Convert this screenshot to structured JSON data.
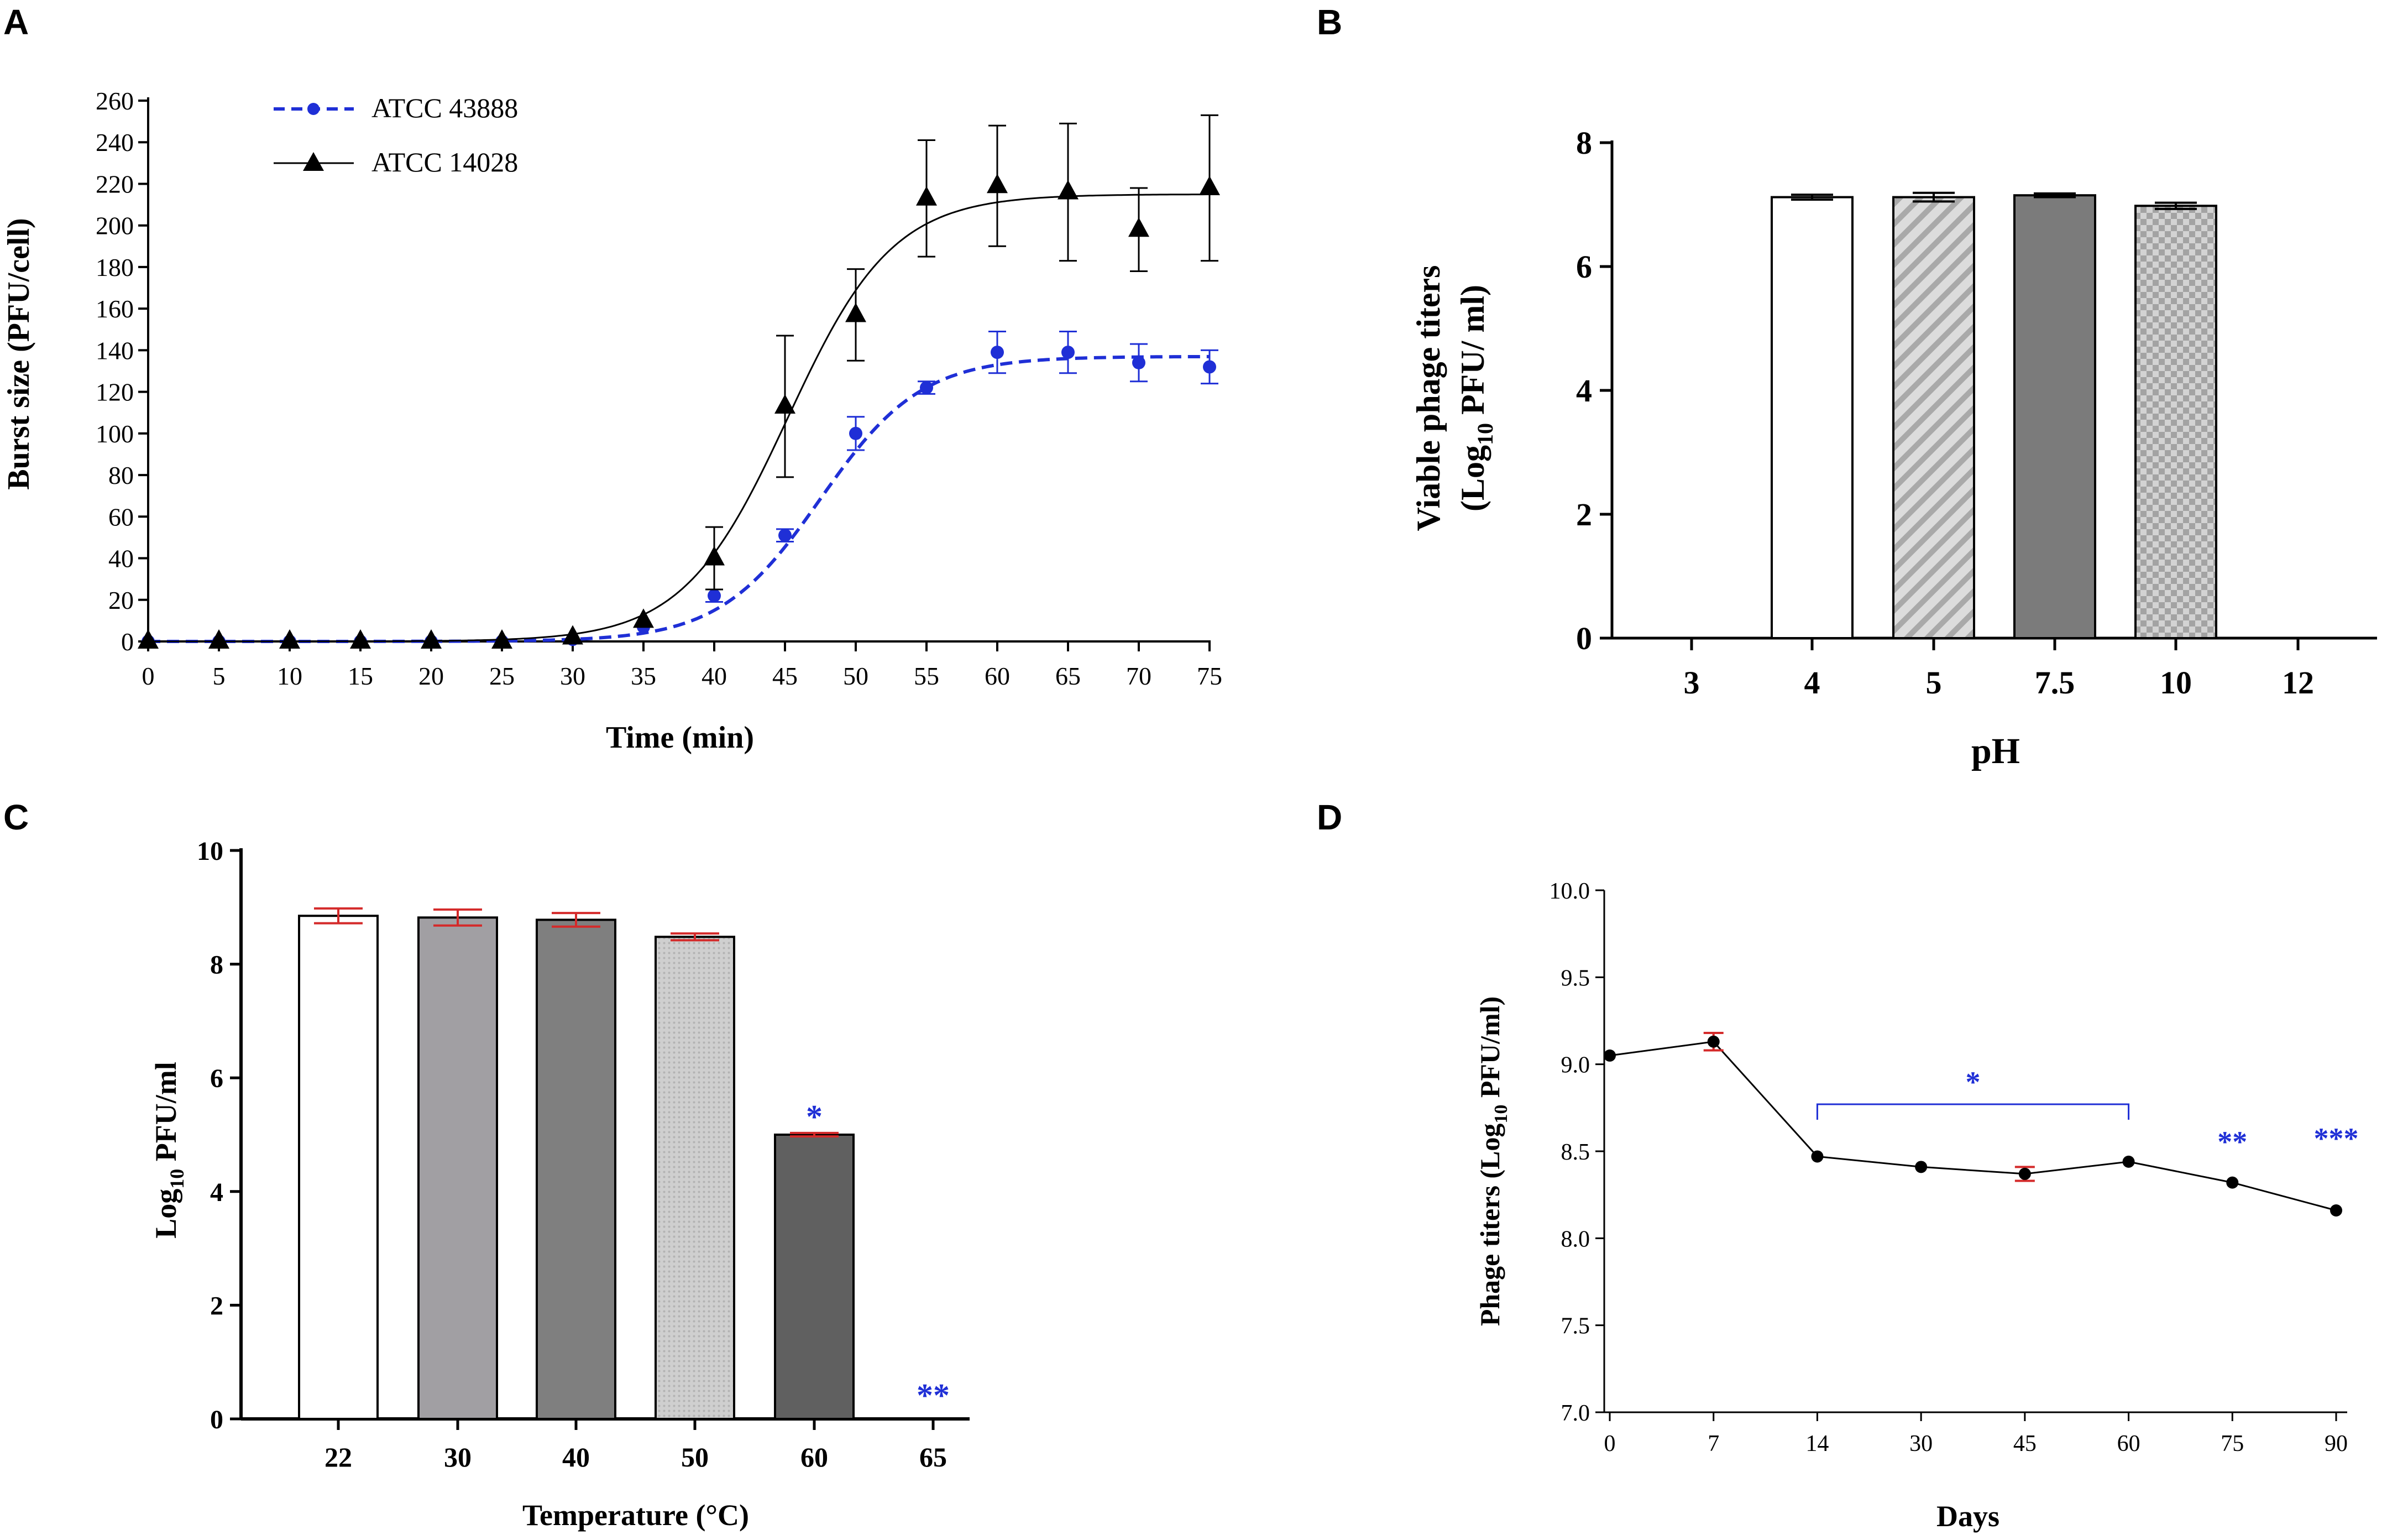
{
  "colors": {
    "blue": "#1f2fd6",
    "red": "#d42a2a",
    "black": "#000000"
  },
  "chart_data": [
    {
      "panel": "A",
      "type": "line",
      "xlabel": "Time (min)",
      "ylabel": "Burst size (PFU/cell)",
      "xlim": [
        0,
        75
      ],
      "ylim": [
        0,
        260
      ],
      "xticks": [
        0,
        5,
        10,
        15,
        20,
        25,
        30,
        35,
        40,
        45,
        50,
        55,
        60,
        65,
        70,
        75
      ],
      "yticks": [
        0,
        20,
        40,
        60,
        80,
        100,
        120,
        140,
        160,
        180,
        200,
        220,
        240,
        260
      ],
      "legend_position": "top-left",
      "series": [
        {
          "name": "ATCC 43888",
          "marker": "circle",
          "line": "dashed",
          "color": "#1f2fd6",
          "x": [
            0,
            5,
            10,
            15,
            20,
            25,
            30,
            35,
            40,
            45,
            50,
            55,
            60,
            65,
            70,
            75
          ],
          "y": [
            0,
            0,
            0,
            0,
            0,
            0,
            1,
            7,
            22,
            51,
            100,
            122,
            139,
            139,
            134,
            132
          ],
          "err": [
            0,
            0,
            0,
            0,
            0,
            0,
            0,
            0,
            3,
            3,
            8,
            3,
            10,
            10,
            9,
            8
          ],
          "fit": {
            "bottom": 0,
            "top": 137,
            "x50": 47.5,
            "slope": 0.28
          }
        },
        {
          "name": "ATCC 14028",
          "marker": "triangle",
          "line": "solid",
          "color": "#000000",
          "x": [
            0,
            5,
            10,
            15,
            20,
            25,
            30,
            35,
            40,
            45,
            50,
            55,
            60,
            65,
            70,
            75
          ],
          "y": [
            0,
            0,
            0,
            0,
            0,
            0,
            2,
            10,
            40,
            113,
            157,
            213,
            219,
            216,
            198,
            218
          ],
          "err": [
            0,
            0,
            0,
            0,
            0,
            0,
            0,
            0,
            15,
            34,
            22,
            28,
            29,
            33,
            20,
            35
          ],
          "fit": {
            "bottom": 0,
            "top": 215,
            "x50": 45.2,
            "slope": 0.27
          }
        }
      ]
    },
    {
      "panel": "B",
      "type": "bar",
      "xlabel": "pH",
      "ylabel_line1": "Viable phage titers",
      "ylabel_line2_pre": "(Log",
      "ylabel_line2_sub": "10",
      "ylabel_line2_post": " PFU/ ml)",
      "ylim": [
        0,
        8
      ],
      "yticks": [
        0,
        2,
        4,
        6,
        8
      ],
      "categories": [
        "3",
        "4",
        "5",
        "7.5",
        "10",
        "12"
      ],
      "values": [
        0,
        7.12,
        7.12,
        7.15,
        6.98,
        0
      ],
      "err": [
        0,
        0.04,
        0.07,
        0.03,
        0.05,
        0
      ],
      "fills": [
        "none",
        "white",
        "diagonal",
        "dark-gray",
        "checker",
        "none"
      ]
    },
    {
      "panel": "C",
      "type": "bar",
      "xlabel": "Temperature (°C)",
      "ylabel_pre": "Log",
      "ylabel_sub": "10",
      "ylabel_post": " PFU/ml",
      "ylim": [
        0,
        10
      ],
      "yticks": [
        0,
        2,
        4,
        6,
        8,
        10
      ],
      "categories": [
        "22",
        "30",
        "40",
        "50",
        "60",
        "65"
      ],
      "values": [
        8.85,
        8.82,
        8.78,
        8.48,
        5.0,
        0
      ],
      "err": [
        0.13,
        0.14,
        0.12,
        0.06,
        0.03,
        0
      ],
      "fills": [
        "white",
        "light-gray",
        "mid-gray",
        "dotted",
        "dark-gray",
        "none"
      ],
      "annotations": [
        {
          "category": "60",
          "text": "*",
          "at_value": 5.45
        },
        {
          "category": "65",
          "text": "**",
          "at_value": 0.55
        }
      ]
    },
    {
      "panel": "D",
      "type": "line",
      "xlabel": "Days",
      "ylabel_pre": "Phage titers (Log",
      "ylabel_sub": "10",
      "ylabel_post": " PFU/ml)",
      "ylim": [
        7.0,
        10.0
      ],
      "yticks": [
        "7.0",
        "7.5",
        "8.0",
        "8.5",
        "9.0",
        "9.5",
        "10.0"
      ],
      "categories": [
        "0",
        "7",
        "14",
        "30",
        "45",
        "60",
        "75",
        "90"
      ],
      "values": [
        9.05,
        9.13,
        8.47,
        8.41,
        8.37,
        8.44,
        8.32,
        8.16
      ],
      "err": [
        0,
        0.05,
        0,
        0,
        0.04,
        0,
        0,
        0
      ],
      "bracket": {
        "from": "14",
        "to": "60",
        "text": "*",
        "at_value": 8.77
      },
      "annotations": [
        {
          "category": "75",
          "text": "**",
          "at_value": 8.56
        },
        {
          "category": "90",
          "text": "***",
          "at_value": 8.58
        }
      ]
    }
  ]
}
